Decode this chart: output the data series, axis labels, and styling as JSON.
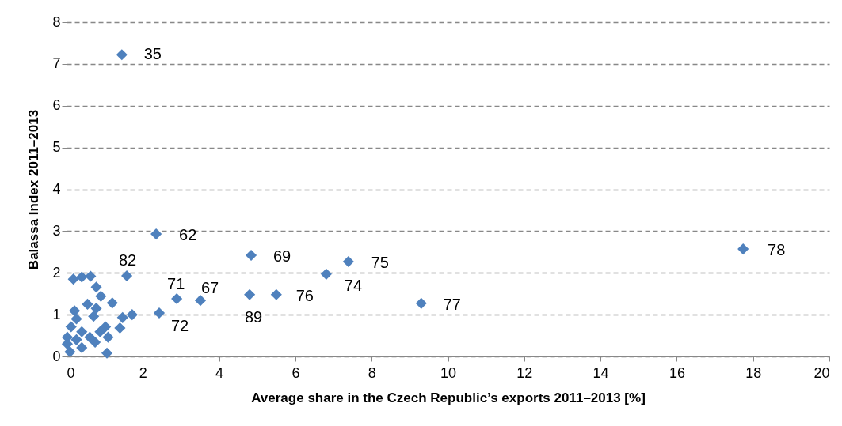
{
  "chart_data": {
    "type": "scatter",
    "xlabel": "Average share in the Czech Republic’s exports 2011–2013 [%]",
    "ylabel": "Balassa Index 2011–2013",
    "xlim": [
      0,
      20
    ],
    "xticks": [
      0,
      2,
      4,
      6,
      8,
      10,
      12,
      14,
      16,
      18,
      20
    ],
    "ylim": [
      0,
      8
    ],
    "yticks": [
      0,
      1,
      2,
      3,
      4,
      5,
      6,
      7,
      8
    ],
    "grid": "y",
    "marker": "diamond",
    "series": [
      {
        "color": "#4f81bd",
        "x": [
          1.45,
          2.35,
          1.58,
          2.89,
          3.51,
          2.43,
          4.84,
          4.8,
          5.5,
          6.81,
          7.39,
          9.3,
          17.74,
          0.18,
          0.4,
          0.63,
          0.78,
          0.9,
          1.2,
          0.55,
          0.78,
          0.21,
          0.71,
          1.72,
          1.47,
          1.4,
          1.02,
          1.09,
          1.06,
          0.75,
          0.26,
          0.12,
          0.4,
          0.02,
          0.61,
          0.02,
          0.09,
          0.4,
          0.26,
          0.88
        ],
        "values": [
          7.22,
          2.93,
          1.93,
          1.38,
          1.34,
          1.04,
          2.42,
          1.48,
          1.48,
          1.97,
          2.27,
          1.27,
          2.57,
          1.85,
          1.9,
          1.92,
          1.66,
          1.44,
          1.28,
          1.25,
          1.15,
          1.09,
          0.96,
          1.0,
          0.93,
          0.68,
          0.71,
          0.46,
          0.08,
          0.34,
          0.9,
          0.71,
          0.59,
          0.46,
          0.46,
          0.3,
          0.11,
          0.21,
          0.4,
          0.59
        ]
      }
    ],
    "annotations": [
      {
        "text": "35",
        "x": 1.45,
        "y": 7.22
      },
      {
        "text": "62",
        "x": 2.35,
        "y": 2.93
      },
      {
        "text": "82",
        "x": 1.58,
        "y": 1.93
      },
      {
        "text": "71",
        "x": 2.89,
        "y": 1.38
      },
      {
        "text": "67",
        "x": 3.51,
        "y": 1.34
      },
      {
        "text": "72",
        "x": 2.43,
        "y": 1.04
      },
      {
        "text": "69",
        "x": 4.84,
        "y": 2.42
      },
      {
        "text": "89",
        "x": 4.8,
        "y": 1.48
      },
      {
        "text": "76",
        "x": 5.5,
        "y": 1.48
      },
      {
        "text": "74",
        "x": 6.81,
        "y": 1.97
      },
      {
        "text": "75",
        "x": 7.39,
        "y": 2.27
      },
      {
        "text": "77",
        "x": 9.3,
        "y": 1.27
      },
      {
        "text": "78",
        "x": 17.74,
        "y": 2.57
      }
    ]
  }
}
